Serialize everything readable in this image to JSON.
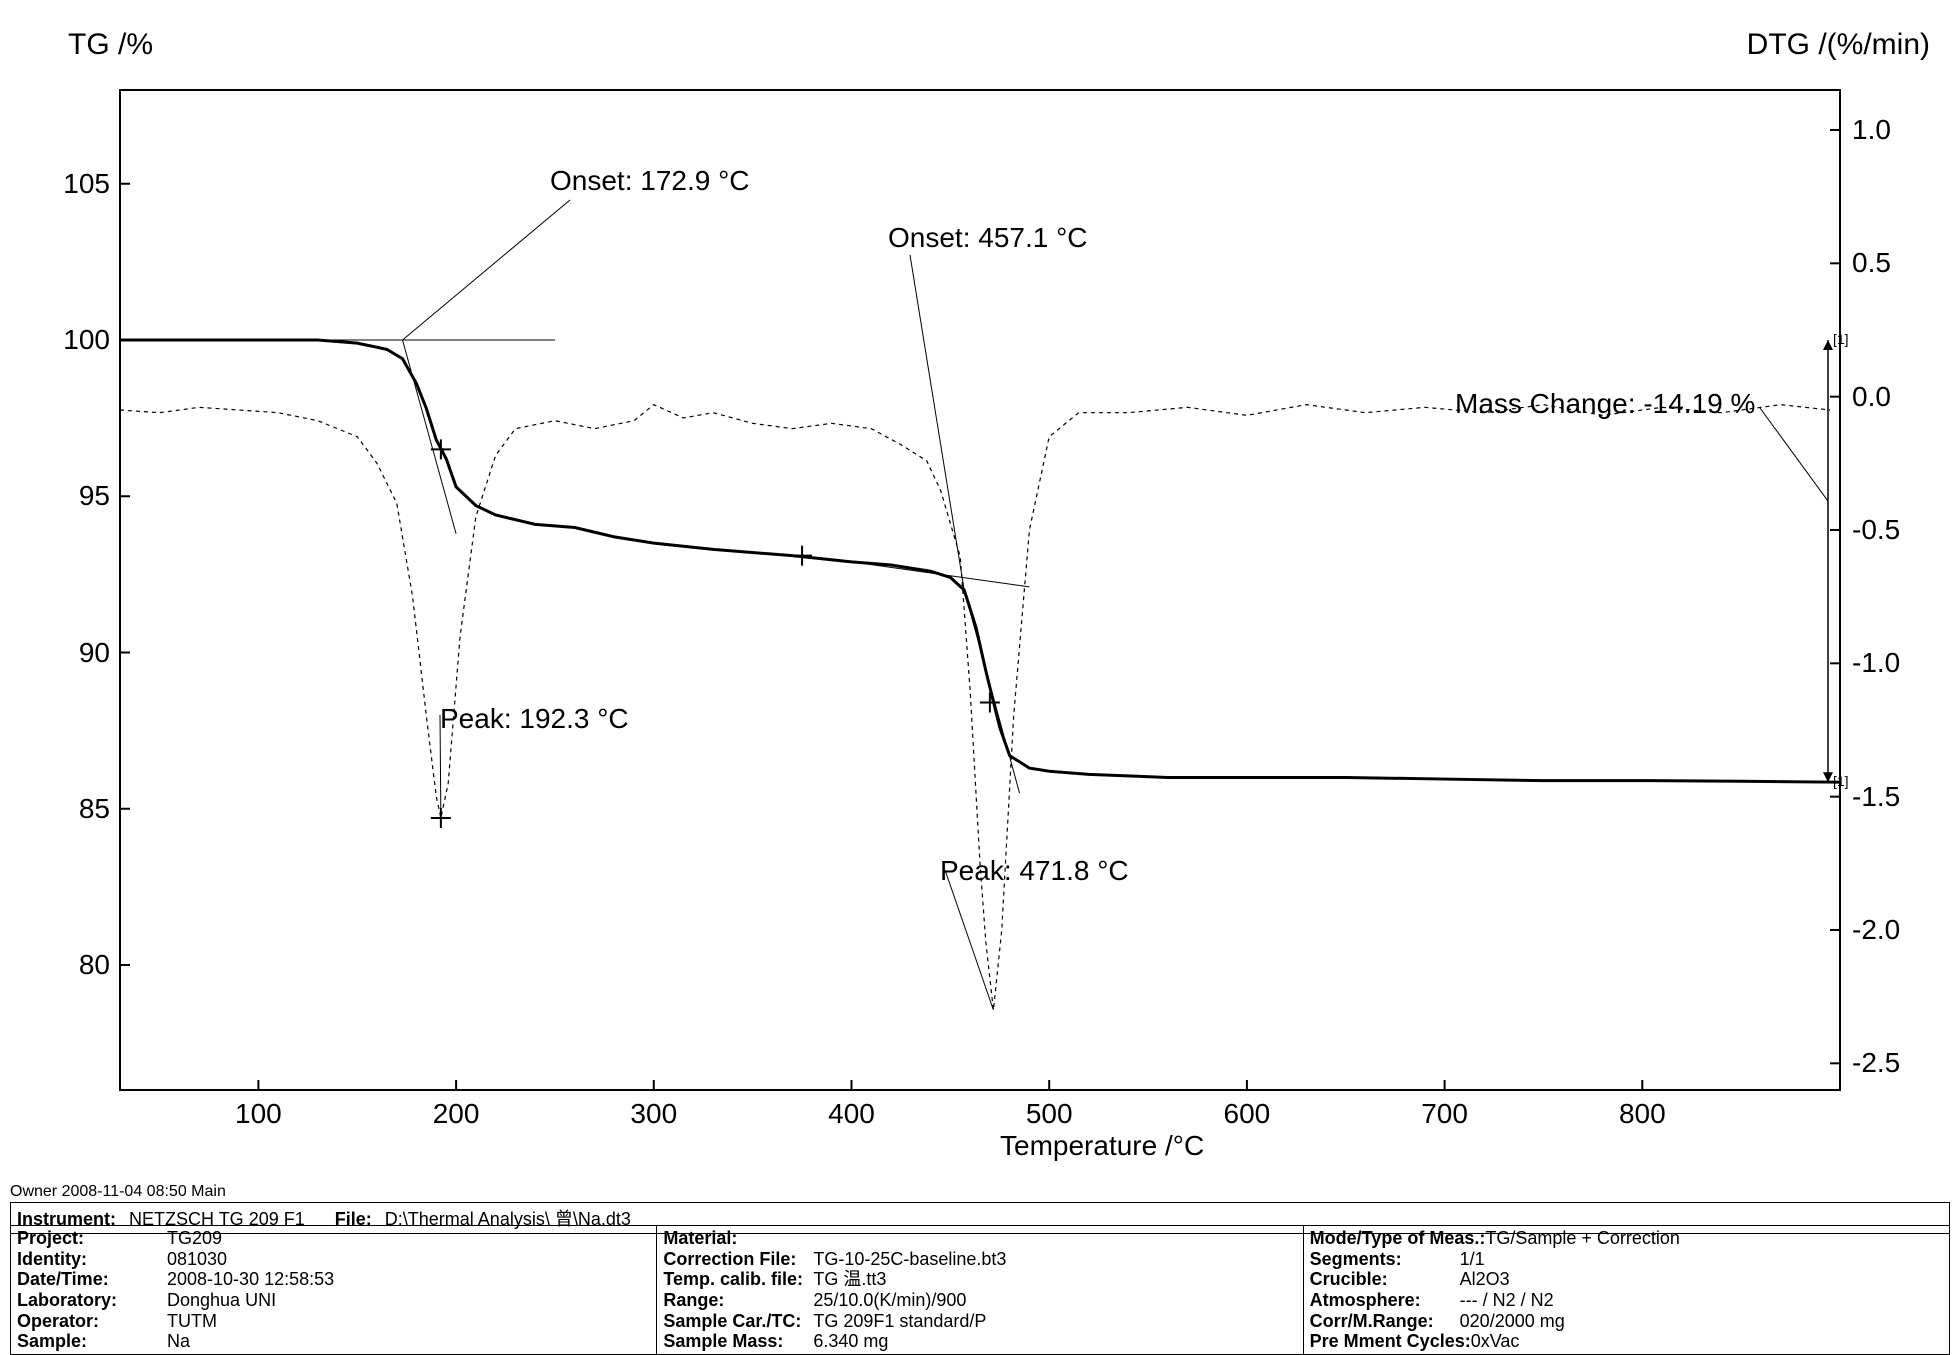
{
  "chart": {
    "type": "line",
    "left_axis_label": "TG /%",
    "right_axis_label": "DTG /(%/min)",
    "x_axis_label": "Temperature /°C",
    "xlim": [
      30,
      900
    ],
    "left_ylim": [
      76,
      108
    ],
    "right_ylim": [
      -2.6,
      1.15
    ],
    "x_ticks": [
      100,
      200,
      300,
      400,
      500,
      600,
      700,
      800
    ],
    "left_y_ticks": [
      80,
      85,
      90,
      95,
      100,
      105
    ],
    "right_y_ticks": [
      -2.5,
      -2.0,
      -1.5,
      -1.0,
      -0.5,
      0.0,
      0.5,
      1.0
    ],
    "background_color": "#ffffff",
    "axis_color": "#000000",
    "tg_curve": {
      "color": "#000000",
      "width": 3,
      "dash": "none",
      "points": [
        [
          30,
          100.0
        ],
        [
          60,
          100.0
        ],
        [
          100,
          100.0
        ],
        [
          130,
          100.0
        ],
        [
          150,
          99.9
        ],
        [
          165,
          99.7
        ],
        [
          172.9,
          99.4
        ],
        [
          180,
          98.6
        ],
        [
          185,
          97.8
        ],
        [
          190,
          96.8
        ],
        [
          195,
          96.2
        ],
        [
          200,
          95.3
        ],
        [
          210,
          94.7
        ],
        [
          220,
          94.4
        ],
        [
          240,
          94.1
        ],
        [
          260,
          94.0
        ],
        [
          280,
          93.7
        ],
        [
          300,
          93.5
        ],
        [
          330,
          93.3
        ],
        [
          370,
          93.1
        ],
        [
          400,
          92.9
        ],
        [
          420,
          92.8
        ],
        [
          440,
          92.6
        ],
        [
          450,
          92.4
        ],
        [
          457,
          92.0
        ],
        [
          463,
          90.8
        ],
        [
          468,
          89.4
        ],
        [
          475,
          87.6
        ],
        [
          480,
          86.7
        ],
        [
          490,
          86.3
        ],
        [
          500,
          86.2
        ],
        [
          520,
          86.1
        ],
        [
          560,
          86.0
        ],
        [
          600,
          86.0
        ],
        [
          650,
          86.0
        ],
        [
          700,
          85.95
        ],
        [
          750,
          85.9
        ],
        [
          800,
          85.9
        ],
        [
          850,
          85.88
        ],
        [
          900,
          85.85
        ]
      ]
    },
    "dtg_curve": {
      "color": "#000000",
      "width": 1.2,
      "dash": "4,4",
      "points": [
        [
          30,
          -0.05
        ],
        [
          50,
          -0.06
        ],
        [
          70,
          -0.04
        ],
        [
          90,
          -0.05
        ],
        [
          110,
          -0.06
        ],
        [
          130,
          -0.09
        ],
        [
          150,
          -0.15
        ],
        [
          160,
          -0.25
        ],
        [
          170,
          -0.4
        ],
        [
          178,
          -0.75
        ],
        [
          185,
          -1.2
        ],
        [
          190,
          -1.5
        ],
        [
          192.3,
          -1.58
        ],
        [
          196,
          -1.45
        ],
        [
          202,
          -0.9
        ],
        [
          210,
          -0.45
        ],
        [
          220,
          -0.22
        ],
        [
          230,
          -0.12
        ],
        [
          250,
          -0.09
        ],
        [
          270,
          -0.12
        ],
        [
          290,
          -0.09
        ],
        [
          300,
          -0.03
        ],
        [
          315,
          -0.08
        ],
        [
          330,
          -0.06
        ],
        [
          350,
          -0.1
        ],
        [
          370,
          -0.12
        ],
        [
          390,
          -0.1
        ],
        [
          410,
          -0.12
        ],
        [
          425,
          -0.18
        ],
        [
          438,
          -0.24
        ],
        [
          445,
          -0.35
        ],
        [
          455,
          -0.6
        ],
        [
          460,
          -1.1
        ],
        [
          465,
          -1.75
        ],
        [
          468,
          -2.05
        ],
        [
          471.8,
          -2.3
        ],
        [
          476,
          -2.0
        ],
        [
          482,
          -1.2
        ],
        [
          490,
          -0.5
        ],
        [
          500,
          -0.15
        ],
        [
          515,
          -0.06
        ],
        [
          540,
          -0.06
        ],
        [
          570,
          -0.04
        ],
        [
          600,
          -0.07
        ],
        [
          630,
          -0.03
        ],
        [
          660,
          -0.06
        ],
        [
          690,
          -0.04
        ],
        [
          720,
          -0.06
        ],
        [
          750,
          -0.03
        ],
        [
          780,
          -0.07
        ],
        [
          810,
          -0.04
        ],
        [
          840,
          -0.06
        ],
        [
          870,
          -0.03
        ],
        [
          895,
          -0.05
        ]
      ]
    },
    "onset_tangent_1": {
      "color": "#000000",
      "width": 1,
      "points": [
        [
          90,
          100.0
        ],
        [
          250,
          100.0
        ]
      ]
    },
    "onset_tangent_1b": {
      "color": "#000000",
      "width": 1,
      "points": [
        [
          172.9,
          100.0
        ],
        [
          200,
          93.8
        ]
      ]
    },
    "onset_tangent_2": {
      "color": "#000000",
      "width": 1,
      "points": [
        [
          400,
          92.9
        ],
        [
          490,
          92.1
        ]
      ]
    },
    "onset_tangent_2b": {
      "color": "#000000",
      "width": 1,
      "points": [
        [
          457,
          92.0
        ],
        [
          485,
          85.5
        ]
      ]
    },
    "annotations": {
      "onset1": "Onset: 172.9 °C",
      "onset2": "Onset: 457.1 °C",
      "peak1": "Peak: 192.3 °C",
      "peak2": "Peak: 471.8 °C",
      "mass_change": "Mass Change: -14.19 %"
    },
    "markers": [
      {
        "x": 192.3,
        "y_tg": 96.5,
        "type": "plus"
      },
      {
        "x": 375,
        "y_tg": 93.1,
        "type": "plus"
      },
      {
        "x": 470,
        "y_tg": 88.4,
        "type": "plus"
      },
      {
        "x": 192.3,
        "y_dtg": -1.58,
        "type": "plus_dtg"
      }
    ]
  },
  "footer": {
    "owner_line": "Owner   2008-11-04 08:50   Main",
    "instrument_label": "Instrument:",
    "instrument_value": "NETZSCH TG 209 F1",
    "file_label": "File:",
    "file_value": "D:\\Thermal Analysis\\      曾\\Na.dt3"
  },
  "meta": {
    "col1": [
      {
        "k": "Project:",
        "v": "TG209"
      },
      {
        "k": "Identity:",
        "v": "081030"
      },
      {
        "k": "Date/Time:",
        "v": "2008-10-30 12:58:53"
      },
      {
        "k": "Laboratory:",
        "v": "Donghua UNI"
      },
      {
        "k": "Operator:",
        "v": "TUTM"
      },
      {
        "k": "Sample:",
        "v": "Na"
      }
    ],
    "col2": [
      {
        "k": "Material:",
        "v": ""
      },
      {
        "k": "Correction File:",
        "v": "TG-10-25C-baseline.bt3"
      },
      {
        "k": "Temp. calib. file:",
        "v": "TG      温.tt3"
      },
      {
        "k": "Range:",
        "v": "25/10.0(K/min)/900"
      },
      {
        "k": "Sample Car./TC:",
        "v": "TG 209F1 standard/P"
      },
      {
        "k": "Sample Mass:",
        "v": "6.340 mg"
      }
    ],
    "col3": [
      {
        "k": "Mode/Type of Meas.:",
        "v": "TG/Sample + Correction"
      },
      {
        "k": "Segments:",
        "v": "1/1"
      },
      {
        "k": "Crucible:",
        "v": "Al2O3"
      },
      {
        "k": "Atmosphere:",
        "v": "--- / N2 / N2"
      },
      {
        "k": "Corr/M.Range:",
        "v": "020/2000 mg"
      },
      {
        "k": "Pre Mment Cycles:",
        "v": "0xVac"
      }
    ]
  }
}
